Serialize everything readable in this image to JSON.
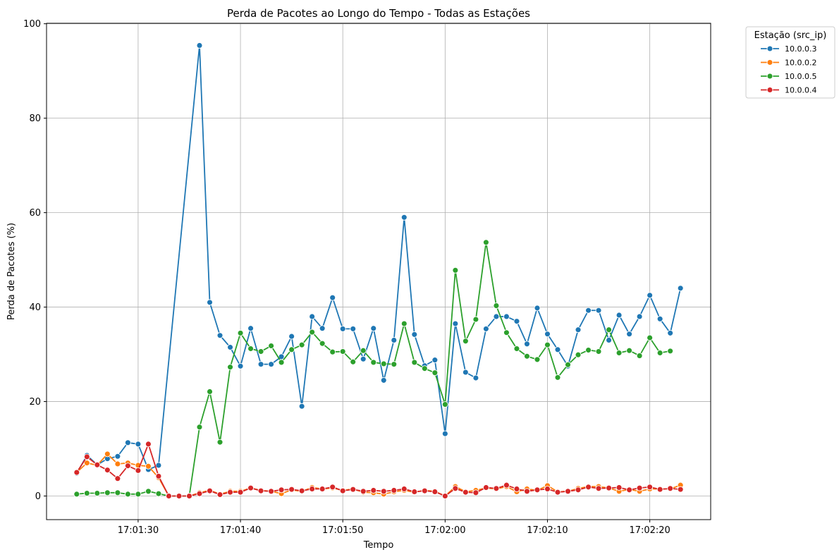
{
  "chart_data": {
    "type": "line",
    "title": "Perda de Pacotes ao Longo do Tempo - Todas as Estações",
    "xlabel": "Tempo",
    "ylabel": "Perda de Pacotes (%)",
    "x_time_range": [
      "17:01:24",
      "17:02:23"
    ],
    "x_ticks": [
      "17:01:30",
      "17:01:40",
      "17:01:50",
      "17:02:00",
      "17:02:10",
      "17:02:20"
    ],
    "ylim": [
      -5,
      100
    ],
    "y_ticks": [
      0,
      20,
      40,
      60,
      80,
      100
    ],
    "grid": true,
    "legend_title": "Estação (src_ip)",
    "legend_position": "outside-top-right",
    "series": [
      {
        "name": "10.0.0.3",
        "color": "#1f77b4",
        "x": [
          "17:01:24",
          "17:01:25",
          "17:01:26",
          "17:01:27",
          "17:01:28",
          "17:01:29",
          "17:01:30",
          "17:01:31",
          "17:01:32",
          "17:01:36",
          "17:01:37",
          "17:01:38",
          "17:01:39",
          "17:01:40",
          "17:01:41",
          "17:01:42",
          "17:01:43",
          "17:01:44",
          "17:01:45",
          "17:01:46",
          "17:01:47",
          "17:01:48",
          "17:01:49",
          "17:01:50",
          "17:01:51",
          "17:01:52",
          "17:01:53",
          "17:01:54",
          "17:01:55",
          "17:01:56",
          "17:01:57",
          "17:01:58",
          "17:01:59",
          "17:02:00",
          "17:02:01",
          "17:02:02",
          "17:02:03",
          "17:02:04",
          "17:02:05",
          "17:02:06",
          "17:02:07",
          "17:02:08",
          "17:02:09",
          "17:02:10",
          "17:02:11",
          "17:02:12",
          "17:02:13",
          "17:02:14",
          "17:02:15",
          "17:02:16",
          "17:02:17",
          "17:02:18",
          "17:02:19",
          "17:02:20",
          "17:02:21",
          "17:02:22",
          "17:02:23"
        ],
        "y": [
          4.8,
          8.6,
          6.6,
          7.9,
          8.4,
          11.3,
          11.0,
          5.6,
          6.5,
          95.4,
          41.0,
          34.0,
          31.5,
          27.5,
          35.5,
          27.9,
          27.9,
          29.5,
          33.8,
          19.0,
          38.0,
          35.5,
          42.0,
          35.4,
          35.4,
          29.0,
          35.5,
          24.5,
          33.0,
          59.0,
          34.2,
          27.6,
          28.8,
          13.2,
          36.5,
          26.2,
          25.0,
          35.4,
          38.0,
          38.0,
          37.0,
          32.2,
          39.8,
          34.3,
          31.0,
          27.5,
          35.2,
          39.3,
          39.3,
          33.0,
          38.3,
          34.3,
          38.0,
          42.5,
          37.5,
          34.5,
          44.0
        ]
      },
      {
        "name": "10.0.0.2",
        "color": "#ff7f0e",
        "x": [
          "17:01:24",
          "17:01:25",
          "17:01:26",
          "17:01:27",
          "17:01:28",
          "17:01:29",
          "17:01:30",
          "17:01:31",
          "17:01:32",
          "17:01:33",
          "17:01:34",
          "17:01:35",
          "17:01:36",
          "17:01:37",
          "17:01:38",
          "17:01:39",
          "17:01:40",
          "17:01:41",
          "17:01:42",
          "17:01:43",
          "17:01:44",
          "17:01:45",
          "17:01:46",
          "17:01:47",
          "17:01:48",
          "17:01:49",
          "17:01:50",
          "17:01:51",
          "17:01:52",
          "17:01:53",
          "17:01:54",
          "17:01:55",
          "17:01:56",
          "17:01:57",
          "17:01:58",
          "17:01:59",
          "17:02:00",
          "17:02:01",
          "17:02:02",
          "17:02:03",
          "17:02:04",
          "17:02:05",
          "17:02:06",
          "17:02:07",
          "17:02:08",
          "17:02:09",
          "17:02:10",
          "17:02:11",
          "17:02:12",
          "17:02:13",
          "17:02:14",
          "17:02:15",
          "17:02:16",
          "17:02:17",
          "17:02:18",
          "17:02:19",
          "17:02:20",
          "17:02:21",
          "17:02:22",
          "17:02:23"
        ],
        "y": [
          5.0,
          7.0,
          6.5,
          8.9,
          6.8,
          7.0,
          6.5,
          6.3,
          3.9,
          0.0,
          0.0,
          0.0,
          0.7,
          1.2,
          0.4,
          1.0,
          1.0,
          1.7,
          1.2,
          1.0,
          0.5,
          1.3,
          1.0,
          1.8,
          1.5,
          1.7,
          1.2,
          1.5,
          0.8,
          0.7,
          0.4,
          0.9,
          1.2,
          0.8,
          1.2,
          1.0,
          0.0,
          2.0,
          0.9,
          1.2,
          1.7,
          1.5,
          2.0,
          0.9,
          1.5,
          1.2,
          2.2,
          0.9,
          1.0,
          1.6,
          2.0,
          2.0,
          1.7,
          1.0,
          1.4,
          1.0,
          1.5,
          1.5,
          1.5,
          2.3
        ]
      },
      {
        "name": "10.0.0.5",
        "color": "#2ca02c",
        "x": [
          "17:01:24",
          "17:01:25",
          "17:01:26",
          "17:01:27",
          "17:01:28",
          "17:01:29",
          "17:01:30",
          "17:01:31",
          "17:01:32",
          "17:01:33",
          "17:01:34",
          "17:01:35",
          "17:01:36",
          "17:01:37",
          "17:01:38",
          "17:01:39",
          "17:01:40",
          "17:01:41",
          "17:01:42",
          "17:01:43",
          "17:01:44",
          "17:01:45",
          "17:01:46",
          "17:01:47",
          "17:01:48",
          "17:01:49",
          "17:01:50",
          "17:01:51",
          "17:01:52",
          "17:01:53",
          "17:01:54",
          "17:01:55",
          "17:01:56",
          "17:01:57",
          "17:01:58",
          "17:01:59",
          "17:02:00",
          "17:02:01",
          "17:02:02",
          "17:02:03",
          "17:02:04",
          "17:02:05",
          "17:02:06",
          "17:02:07",
          "17:02:08",
          "17:02:09",
          "17:02:10",
          "17:02:11",
          "17:02:12",
          "17:02:13",
          "17:02:14",
          "17:02:15",
          "17:02:16",
          "17:02:17",
          "17:02:18",
          "17:02:19",
          "17:02:20",
          "17:02:21",
          "17:02:22"
        ],
        "y": [
          0.4,
          0.6,
          0.6,
          0.7,
          0.7,
          0.4,
          0.4,
          1.0,
          0.5,
          0.0,
          0.0,
          0.0,
          14.6,
          22.1,
          11.4,
          27.3,
          34.5,
          31.2,
          30.6,
          31.8,
          28.3,
          31.0,
          32.0,
          34.7,
          32.3,
          30.5,
          30.6,
          28.4,
          30.8,
          28.3,
          28.0,
          27.9,
          36.5,
          28.3,
          27.0,
          26.1,
          19.4,
          47.8,
          32.8,
          37.4,
          53.7,
          40.3,
          34.6,
          31.2,
          29.6,
          28.9,
          32.0,
          25.1,
          27.8,
          29.9,
          30.9,
          30.6,
          35.2,
          30.3,
          30.8,
          29.7,
          33.5,
          30.3,
          30.7
        ]
      },
      {
        "name": "10.0.0.4",
        "color": "#d62728",
        "x": [
          "17:01:24",
          "17:01:25",
          "17:01:26",
          "17:01:27",
          "17:01:28",
          "17:01:29",
          "17:01:30",
          "17:01:31",
          "17:01:32",
          "17:01:33",
          "17:01:34",
          "17:01:35",
          "17:01:36",
          "17:01:37",
          "17:01:38",
          "17:01:39",
          "17:01:40",
          "17:01:41",
          "17:01:42",
          "17:01:43",
          "17:01:44",
          "17:01:45",
          "17:01:46",
          "17:01:47",
          "17:01:48",
          "17:01:49",
          "17:01:50",
          "17:01:51",
          "17:01:52",
          "17:01:53",
          "17:01:54",
          "17:01:55",
          "17:01:56",
          "17:01:57",
          "17:01:58",
          "17:01:59",
          "17:02:00",
          "17:02:01",
          "17:02:02",
          "17:02:03",
          "17:02:04",
          "17:02:05",
          "17:02:06",
          "17:02:07",
          "17:02:08",
          "17:02:09",
          "17:02:10",
          "17:02:11",
          "17:02:12",
          "17:02:13",
          "17:02:14",
          "17:02:15",
          "17:02:16",
          "17:02:17",
          "17:02:18",
          "17:02:19",
          "17:02:20",
          "17:02:21",
          "17:02:22",
          "17:02:23"
        ],
        "y": [
          5.0,
          8.3,
          6.6,
          5.5,
          3.7,
          6.4,
          5.4,
          11.0,
          4.2,
          0.0,
          0.0,
          0.0,
          0.5,
          1.1,
          0.3,
          0.8,
          0.8,
          1.7,
          1.1,
          1.0,
          1.3,
          1.4,
          1.1,
          1.5,
          1.5,
          1.9,
          1.1,
          1.4,
          1.0,
          1.2,
          1.0,
          1.2,
          1.5,
          0.9,
          1.1,
          0.9,
          0.0,
          1.6,
          0.8,
          0.7,
          1.8,
          1.6,
          2.3,
          1.5,
          1.0,
          1.3,
          1.5,
          0.8,
          1.0,
          1.3,
          1.9,
          1.6,
          1.7,
          1.8,
          1.3,
          1.7,
          1.9,
          1.4,
          1.6,
          1.4
        ]
      }
    ]
  }
}
